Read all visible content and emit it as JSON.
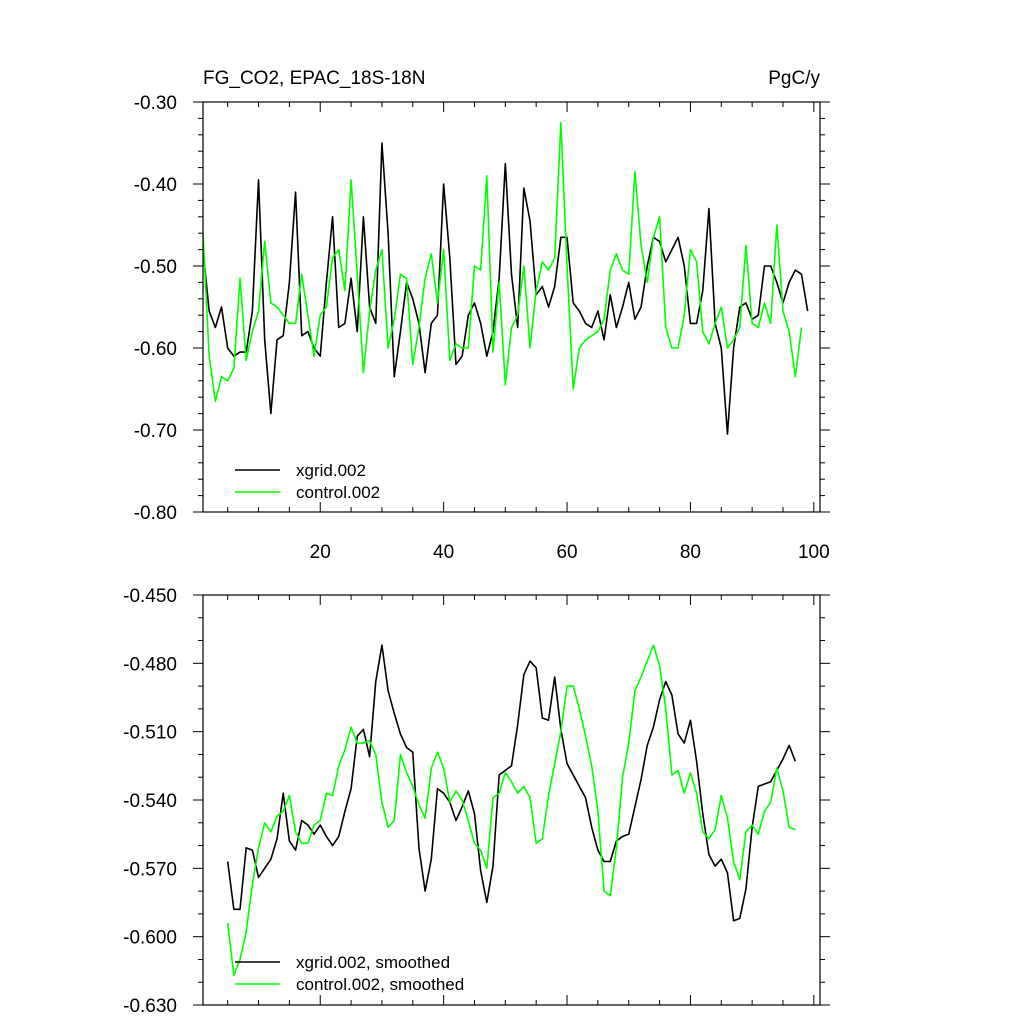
{
  "chart_data": [
    {
      "type": "line",
      "title_left": "FG_CO2, EPAC_18S-18N",
      "title_right": "PgC/y",
      "xlabel": "",
      "ylabel": "",
      "xlim": [
        1,
        101
      ],
      "ylim": [
        -0.8,
        -0.3
      ],
      "x_ticks": [
        20,
        40,
        60,
        80,
        100
      ],
      "x_tick_labels": [
        "20",
        "40",
        "60",
        "80",
        "100"
      ],
      "y_ticks": [
        -0.3,
        -0.4,
        -0.5,
        -0.6,
        -0.7,
        -0.8
      ],
      "y_tick_labels": [
        "-0.30",
        "-0.40",
        "-0.50",
        "-0.60",
        "-0.70",
        "-0.80"
      ],
      "legend_position": "bottom-left",
      "x_start": 1,
      "series": [
        {
          "name": "xgrid.002",
          "color": "#000000",
          "values": [
            -0.48,
            -0.555,
            -0.575,
            -0.55,
            -0.6,
            -0.61,
            -0.605,
            -0.605,
            -0.555,
            -0.395,
            -0.59,
            -0.68,
            -0.59,
            -0.585,
            -0.52,
            -0.41,
            -0.585,
            -0.58,
            -0.6,
            -0.61,
            -0.52,
            -0.44,
            -0.575,
            -0.57,
            -0.515,
            -0.58,
            -0.44,
            -0.55,
            -0.57,
            -0.35,
            -0.46,
            -0.635,
            -0.58,
            -0.52,
            -0.54,
            -0.57,
            -0.63,
            -0.57,
            -0.56,
            -0.4,
            -0.49,
            -0.62,
            -0.61,
            -0.56,
            -0.545,
            -0.57,
            -0.61,
            -0.58,
            -0.515,
            -0.375,
            -0.51,
            -0.575,
            -0.405,
            -0.445,
            -0.535,
            -0.525,
            -0.55,
            -0.525,
            -0.465,
            -0.465,
            -0.545,
            -0.555,
            -0.57,
            -0.575,
            -0.555,
            -0.59,
            -0.535,
            -0.575,
            -0.55,
            -0.52,
            -0.565,
            -0.55,
            -0.5,
            -0.465,
            -0.47,
            -0.495,
            -0.48,
            -0.465,
            -0.5,
            -0.57,
            -0.57,
            -0.53,
            -0.43,
            -0.57,
            -0.6,
            -0.705,
            -0.6,
            -0.55,
            -0.545,
            -0.565,
            -0.56,
            -0.5,
            -0.5,
            -0.52,
            -0.545,
            -0.52,
            -0.505,
            -0.51,
            -0.555
          ]
        },
        {
          "name": "control.002",
          "color": "#00ff00",
          "values": [
            -0.46,
            -0.61,
            -0.665,
            -0.635,
            -0.64,
            -0.625,
            -0.515,
            -0.615,
            -0.58,
            -0.555,
            -0.47,
            -0.545,
            -0.55,
            -0.56,
            -0.57,
            -0.57,
            -0.51,
            -0.56,
            -0.61,
            -0.56,
            -0.55,
            -0.49,
            -0.48,
            -0.53,
            -0.395,
            -0.51,
            -0.63,
            -0.555,
            -0.505,
            -0.48,
            -0.6,
            -0.565,
            -0.51,
            -0.515,
            -0.62,
            -0.575,
            -0.515,
            -0.485,
            -0.545,
            -0.48,
            -0.615,
            -0.595,
            -0.6,
            -0.6,
            -0.5,
            -0.505,
            -0.39,
            -0.605,
            -0.52,
            -0.645,
            -0.575,
            -0.56,
            -0.5,
            -0.6,
            -0.53,
            -0.495,
            -0.505,
            -0.49,
            -0.325,
            -0.5,
            -0.65,
            -0.6,
            -0.59,
            -0.585,
            -0.58,
            -0.565,
            -0.505,
            -0.485,
            -0.505,
            -0.51,
            -0.385,
            -0.475,
            -0.52,
            -0.465,
            -0.44,
            -0.575,
            -0.6,
            -0.6,
            -0.56,
            -0.48,
            -0.495,
            -0.58,
            -0.595,
            -0.57,
            -0.55,
            -0.6,
            -0.59,
            -0.575,
            -0.475,
            -0.57,
            -0.575,
            -0.545,
            -0.57,
            -0.45,
            -0.555,
            -0.58,
            -0.635,
            -0.575
          ]
        }
      ]
    },
    {
      "type": "line",
      "xlabel": "",
      "ylabel": "",
      "xlim": [
        1,
        101
      ],
      "ylim": [
        -0.63,
        -0.45
      ],
      "x_ticks": [
        20,
        40,
        60,
        80,
        100
      ],
      "y_ticks": [
        -0.45,
        -0.48,
        -0.51,
        -0.54,
        -0.57,
        -0.6,
        -0.63
      ],
      "y_tick_labels": [
        "-0.450",
        "-0.480",
        "-0.510",
        "-0.540",
        "-0.570",
        "-0.600",
        "-0.630"
      ],
      "legend_position": "bottom-left",
      "x_start": 5,
      "series": [
        {
          "name": "xgrid.002, smoothed",
          "color": "#000000",
          "values": [
            -0.567,
            -0.588,
            -0.588,
            -0.561,
            -0.562,
            -0.574,
            -0.57,
            -0.566,
            -0.557,
            -0.537,
            -0.558,
            -0.562,
            -0.549,
            -0.551,
            -0.555,
            -0.551,
            -0.556,
            -0.56,
            -0.556,
            -0.545,
            -0.535,
            -0.512,
            -0.509,
            -0.521,
            -0.488,
            -0.472,
            -0.492,
            -0.502,
            -0.511,
            -0.517,
            -0.519,
            -0.561,
            -0.58,
            -0.566,
            -0.535,
            -0.537,
            -0.541,
            -0.549,
            -0.543,
            -0.536,
            -0.546,
            -0.571,
            -0.585,
            -0.569,
            -0.529,
            -0.527,
            -0.525,
            -0.507,
            -0.485,
            -0.479,
            -0.482,
            -0.504,
            -0.505,
            -0.486,
            -0.509,
            -0.524,
            -0.529,
            -0.534,
            -0.539,
            -0.552,
            -0.562,
            -0.567,
            -0.567,
            -0.558,
            -0.556,
            -0.555,
            -0.543,
            -0.531,
            -0.516,
            -0.508,
            -0.496,
            -0.488,
            -0.494,
            -0.511,
            -0.515,
            -0.505,
            -0.523,
            -0.546,
            -0.564,
            -0.569,
            -0.566,
            -0.572,
            -0.593,
            -0.592,
            -0.579,
            -0.552,
            -0.534,
            -0.533,
            -0.532,
            -0.527,
            -0.522,
            -0.516,
            -0.523
          ]
        },
        {
          "name": "control.002, smoothed",
          "color": "#00ff00",
          "values": [
            -0.594,
            -0.617,
            -0.61,
            -0.598,
            -0.577,
            -0.561,
            -0.55,
            -0.554,
            -0.547,
            -0.545,
            -0.538,
            -0.554,
            -0.559,
            -0.559,
            -0.551,
            -0.549,
            -0.537,
            -0.538,
            -0.525,
            -0.518,
            -0.508,
            -0.515,
            -0.515,
            -0.514,
            -0.52,
            -0.541,
            -0.552,
            -0.549,
            -0.52,
            -0.528,
            -0.534,
            -0.542,
            -0.548,
            -0.526,
            -0.519,
            -0.526,
            -0.541,
            -0.536,
            -0.54,
            -0.549,
            -0.559,
            -0.562,
            -0.57,
            -0.539,
            -0.537,
            -0.528,
            -0.532,
            -0.537,
            -0.534,
            -0.539,
            -0.559,
            -0.557,
            -0.538,
            -0.524,
            -0.51,
            -0.49,
            -0.49,
            -0.5,
            -0.512,
            -0.525,
            -0.545,
            -0.58,
            -0.582,
            -0.561,
            -0.53,
            -0.515,
            -0.492,
            -0.486,
            -0.479,
            -0.472,
            -0.481,
            -0.5,
            -0.529,
            -0.527,
            -0.537,
            -0.528,
            -0.537,
            -0.554,
            -0.557,
            -0.553,
            -0.538,
            -0.548,
            -0.567,
            -0.575,
            -0.554,
            -0.551,
            -0.555,
            -0.545,
            -0.541,
            -0.526,
            -0.536,
            -0.552,
            -0.553
          ]
        }
      ]
    }
  ]
}
